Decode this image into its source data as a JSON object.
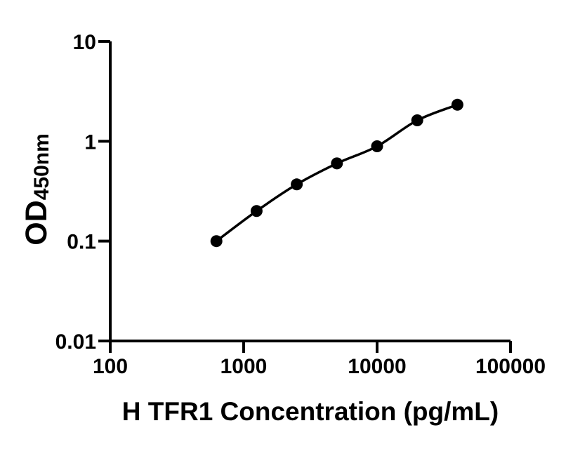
{
  "figure": {
    "background": "#ffffff"
  },
  "chart_data": {
    "type": "scatter",
    "title": "",
    "xlabel": "H TFR1 Concentration (pg/mL)",
    "ylabel": "OD450nm",
    "ylabel_main": "OD",
    "ylabel_sub": "450nm",
    "x": [
      625,
      1250,
      2500,
      5000,
      10000,
      20000,
      40000
    ],
    "y": [
      0.1,
      0.2,
      0.37,
      0.6,
      0.89,
      1.62,
      2.32
    ],
    "xscale": "log",
    "yscale": "log",
    "xlim": [
      100,
      100000
    ],
    "ylim": [
      0.01,
      10
    ],
    "x_ticks": [
      100,
      1000,
      10000,
      100000
    ],
    "x_tick_labels": [
      "100",
      "1000",
      "10000",
      "100000"
    ],
    "y_ticks": [
      0.01,
      0.1,
      1,
      10
    ],
    "y_tick_labels": [
      "0.01",
      "0.1",
      "1",
      "10"
    ],
    "grid": false,
    "legend": "none",
    "marker": "filled-circle",
    "line_style": "smooth-curve",
    "colors": {
      "axis": "#000000",
      "line": "#000000",
      "marker": "#000000",
      "text": "#000000",
      "background": "#ffffff"
    }
  }
}
